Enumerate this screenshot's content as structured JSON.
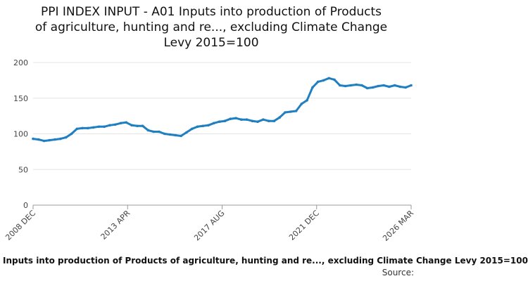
{
  "chart_data": {
    "type": "line",
    "title_lines": [
      "PPI INDEX INPUT - A01 Inputs into production of Products",
      "of agriculture, hunting and re..., excluding Climate Change",
      "Levy 2015=100"
    ],
    "subtitle": "Inputs into production of Products of agriculture, hunting and re..., excluding Climate Change Levy 2015=100",
    "source_label": "Source:",
    "ylim": [
      0,
      200
    ],
    "y_ticks": [
      "0",
      "50",
      "100",
      "150",
      "200"
    ],
    "x_ticks": [
      "2008 DEC",
      "2013 APR",
      "2017 AUG",
      "2021 DEC",
      "2026 MAR"
    ],
    "grid": "horizontal",
    "legend": "none",
    "color": "#1f7fc1",
    "series": [
      {
        "x": [
          "2008-12",
          "2009-03",
          "2009-06",
          "2009-09",
          "2009-12",
          "2010-03",
          "2010-06",
          "2010-09",
          "2010-12",
          "2011-03",
          "2011-06",
          "2011-09",
          "2011-12",
          "2012-03",
          "2012-06",
          "2012-09",
          "2012-12",
          "2013-03",
          "2013-06",
          "2013-09",
          "2013-12",
          "2014-03",
          "2014-06",
          "2014-09",
          "2014-12",
          "2015-03",
          "2015-06",
          "2015-09",
          "2015-12",
          "2016-03",
          "2016-06",
          "2016-09",
          "2016-12",
          "2017-03",
          "2017-06",
          "2017-09",
          "2017-12",
          "2018-03",
          "2018-06",
          "2018-09",
          "2018-12",
          "2019-03",
          "2019-06",
          "2019-09",
          "2019-12",
          "2020-03",
          "2020-06",
          "2020-09",
          "2020-12",
          "2021-03",
          "2021-06",
          "2021-09",
          "2021-12",
          "2022-03",
          "2022-06",
          "2022-09",
          "2022-12",
          "2023-03",
          "2023-06",
          "2023-09",
          "2023-12",
          "2024-03",
          "2024-06",
          "2024-09",
          "2024-12",
          "2025-03",
          "2025-06",
          "2025-09",
          "2025-12",
          "2026-03"
        ],
        "values": [
          93,
          92,
          90,
          91,
          92,
          93,
          95,
          100,
          107,
          108,
          108,
          109,
          110,
          110,
          112,
          113,
          115,
          116,
          112,
          111,
          111,
          105,
          103,
          103,
          100,
          99,
          98,
          97,
          102,
          107,
          110,
          111,
          112,
          115,
          117,
          118,
          121,
          122,
          120,
          120,
          118,
          117,
          120,
          118,
          118,
          123,
          130,
          131,
          132,
          142,
          147,
          165,
          173,
          175,
          178,
          176,
          168,
          167,
          168,
          169,
          168,
          164,
          165,
          167,
          168,
          166,
          168,
          166,
          165,
          168
        ]
      }
    ]
  }
}
